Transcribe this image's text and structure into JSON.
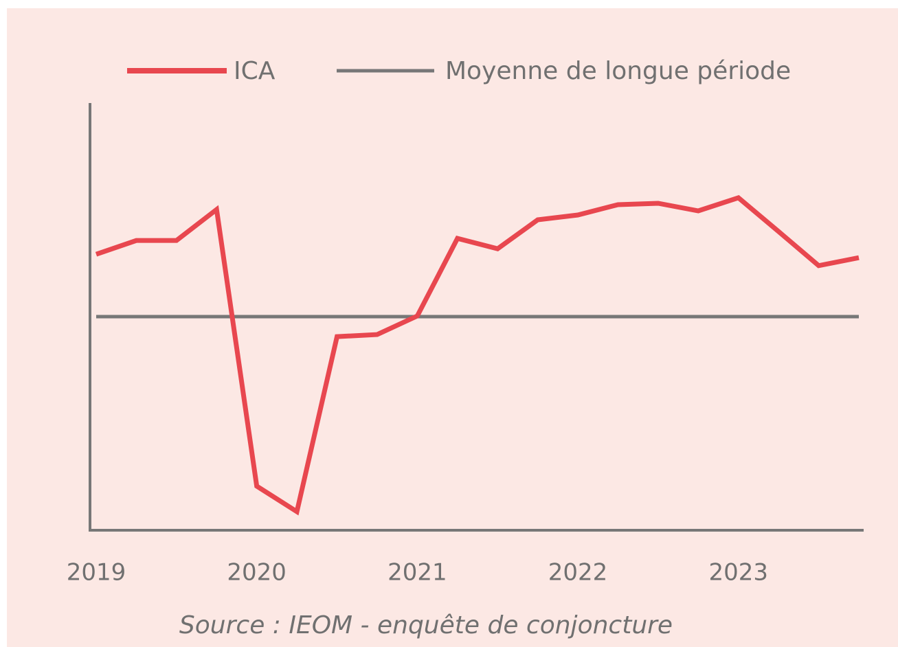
{
  "chart_data": {
    "type": "line",
    "categories": [
      "2019",
      null,
      null,
      null,
      "2020",
      null,
      null,
      null,
      "2021",
      null,
      null,
      null,
      "2022",
      null,
      null,
      null,
      "2023",
      null,
      null,
      null
    ],
    "series": [
      {
        "name": "ICA",
        "color": "#e8474f",
        "values": [
          118.1,
          122.1,
          122.1,
          131.1,
          50.8,
          43.4,
          94.2,
          94.8,
          100.2,
          122.7,
          119.7,
          128.1,
          129.5,
          132.5,
          132.9,
          130.7,
          134.5,
          124.7,
          114.8,
          117.1
        ]
      },
      {
        "name": "Moyenne de longue période",
        "color": "#777777",
        "values": [
          100,
          100,
          100,
          100,
          100,
          100,
          100,
          100,
          100,
          100,
          100,
          100,
          100,
          100,
          100,
          100,
          100,
          100,
          100,
          100
        ]
      }
    ],
    "ylim": [
      38,
      162
    ],
    "legend": "top",
    "source": "Source : IEOM - enquête de conjoncture"
  }
}
